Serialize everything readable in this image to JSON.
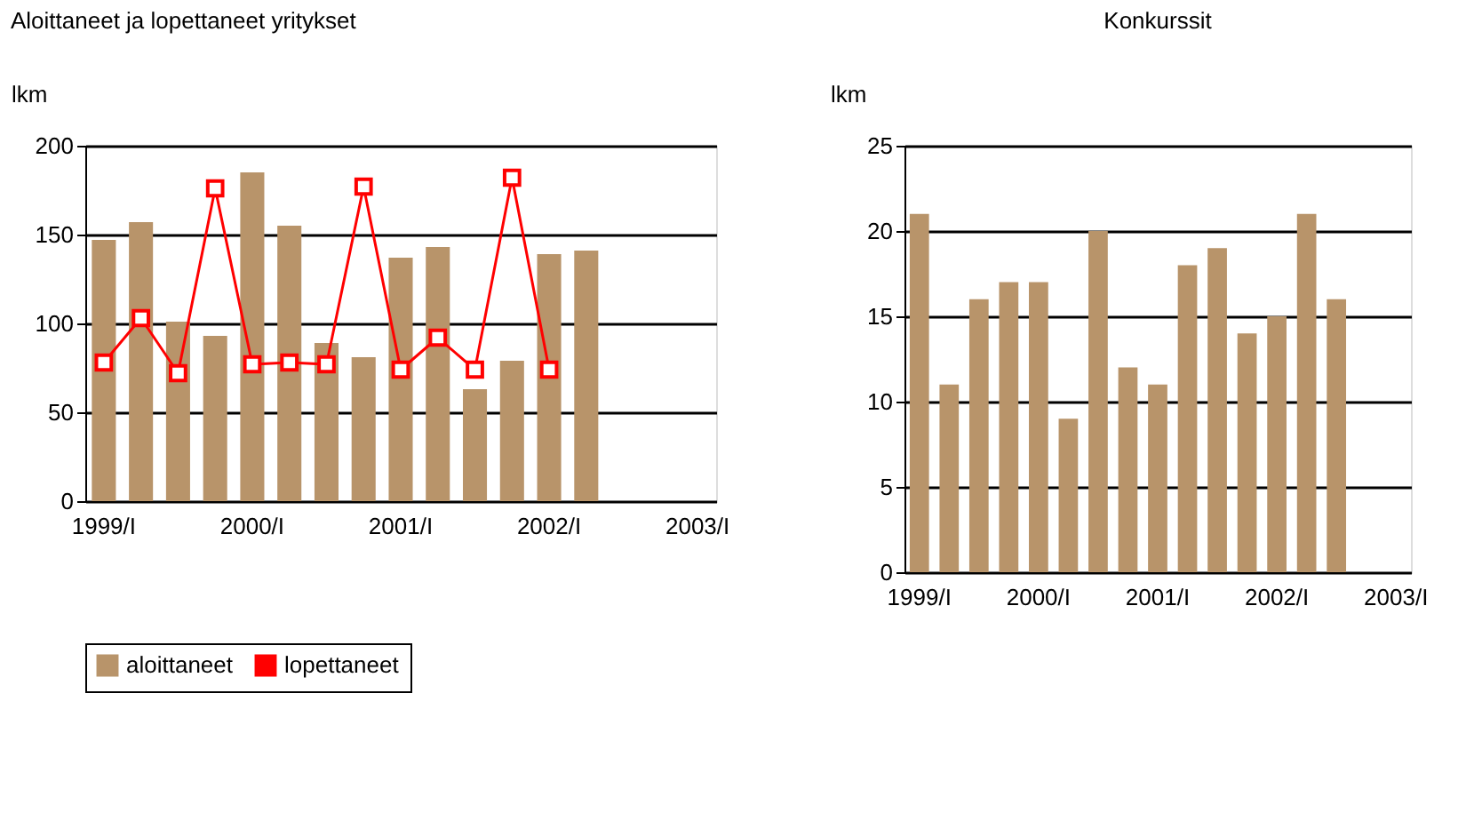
{
  "chart_data": [
    {
      "type": "bar",
      "title": "Aloittaneet ja lopettaneet yritykset",
      "ylabel": "lkm",
      "categories": [
        "1999/I",
        null,
        null,
        null,
        "2000/I",
        null,
        null,
        null,
        "2001/I",
        null,
        null,
        null,
        "2002/I",
        null,
        null,
        null,
        "2003/I"
      ],
      "series": [
        {
          "name": "aloittaneet",
          "type": "bar",
          "color": "#b8946a",
          "values": [
            147,
            157,
            101,
            93,
            185,
            155,
            89,
            81,
            137,
            143,
            63,
            79,
            139,
            141,
            null,
            null,
            null
          ]
        },
        {
          "name": "lopettaneet",
          "type": "line",
          "color": "#ff0000",
          "marker": "square",
          "values": [
            78,
            103,
            72,
            176,
            77,
            78,
            77,
            177,
            74,
            92,
            74,
            182,
            74,
            null,
            null,
            null,
            null
          ]
        }
      ],
      "ylim": [
        0,
        200
      ],
      "yticks": [
        0,
        50,
        100,
        150,
        200
      ],
      "grid": "y",
      "legend": "bottom"
    },
    {
      "type": "bar",
      "title": "Konkurssit",
      "ylabel": "lkm",
      "categories": [
        "1999/I",
        null,
        null,
        null,
        "2000/I",
        null,
        null,
        null,
        "2001/I",
        null,
        null,
        null,
        "2002/I",
        null,
        null,
        null,
        "2003/I"
      ],
      "color": "#b8946a",
      "values": [
        21,
        11,
        16,
        17,
        17,
        9,
        20,
        12,
        11,
        18,
        19,
        14,
        15,
        21,
        16,
        null,
        null
      ],
      "ylim": [
        0,
        25
      ],
      "yticks": [
        0,
        5,
        10,
        15,
        20,
        25
      ],
      "grid": "y"
    }
  ]
}
